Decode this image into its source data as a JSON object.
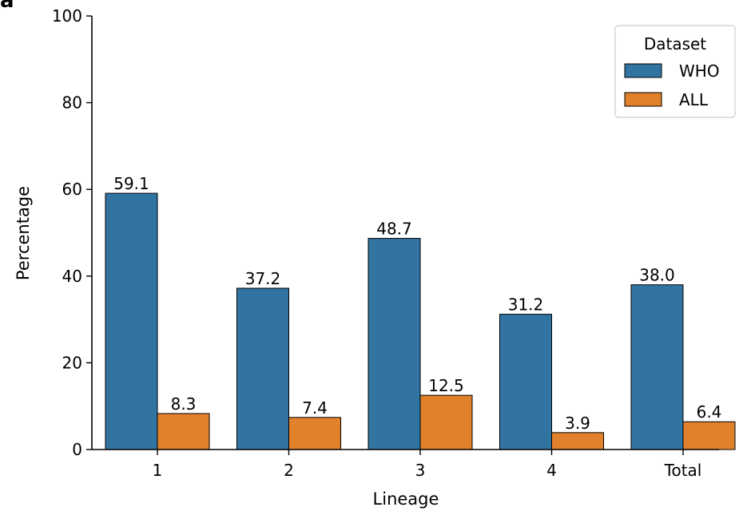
{
  "panel_label": "a",
  "chart_data": {
    "type": "bar",
    "xlabel": "Lineage",
    "ylabel": "Percentage",
    "categories": [
      "1",
      "2",
      "3",
      "4",
      "Total"
    ],
    "ylim": [
      0,
      100
    ],
    "yticks": [
      0,
      20,
      40,
      60,
      80,
      100
    ],
    "series": [
      {
        "name": "WHO",
        "color": "#3274a1",
        "values": [
          59.1,
          37.2,
          48.7,
          31.2,
          38.0
        ],
        "labels": [
          "59.1",
          "37.2",
          "48.7",
          "31.2",
          "38.0"
        ]
      },
      {
        "name": "ALL",
        "color": "#e1812c",
        "values": [
          8.3,
          7.4,
          12.5,
          3.9,
          6.4
        ],
        "labels": [
          "8.3",
          "7.4",
          "12.5",
          "3.9",
          "6.4"
        ]
      }
    ],
    "legend": {
      "title": "Dataset",
      "position": "top-right"
    },
    "grid": false
  }
}
